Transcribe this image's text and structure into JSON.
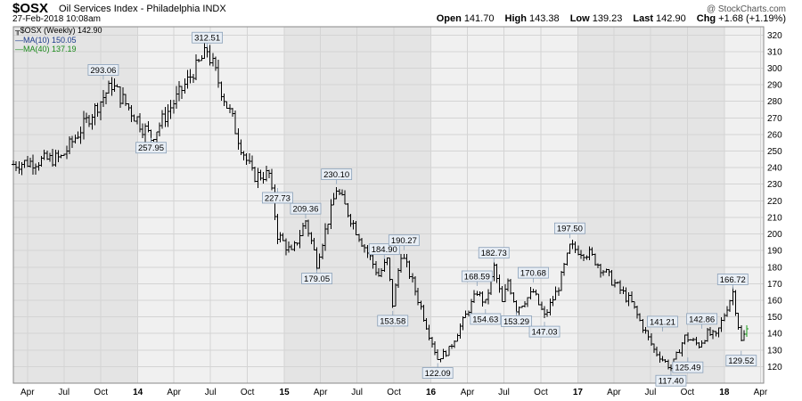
{
  "header": {
    "symbol": "$OSX",
    "description": "Oil Services Index - Philadelphia  INDX",
    "timestamp": "27-Feb-2018 10:08am",
    "watermark": "@ StockCharts.com",
    "open_label": "Open",
    "open": "141.70",
    "high_label": "High",
    "high": "143.38",
    "low_label": "Low",
    "low": "139.23",
    "last_label": "Last",
    "last": "142.90",
    "chg_label": "Chg",
    "chg": "+1.68 (+1.19%)"
  },
  "legend": {
    "price": "$OSX (Weekly) 142.90",
    "ma10": "MA(10) 150.05",
    "ma40": "MA(40) 137.19"
  },
  "colors": {
    "bars": "#000000",
    "last_bar": "#1a9a1a",
    "ma10": "#1a3a8a",
    "ma40": "#1a8a1a",
    "band_shade": "#e4e4e4",
    "band_light": "#f0f0f0"
  },
  "chart_data": {
    "type": "ohlc",
    "grid": true,
    "ylim": [
      110,
      325
    ],
    "y_ticks": [
      120,
      130,
      140,
      150,
      160,
      170,
      180,
      190,
      200,
      210,
      220,
      230,
      240,
      250,
      260,
      270,
      280,
      290,
      300,
      310,
      320
    ],
    "x_ticks": [
      "Apr",
      "Jul",
      "Oct",
      "14",
      "Apr",
      "Jul",
      "Oct",
      "15",
      "Apr",
      "Jul",
      "Oct",
      "16",
      "Apr",
      "Jul",
      "Oct",
      "17",
      "Apr",
      "Jul",
      "Oct",
      "18",
      "Apr"
    ],
    "x_tick_dates": [
      "2013-04-01",
      "2013-07-01",
      "2013-10-01",
      "2014-01-01",
      "2014-04-01",
      "2014-07-01",
      "2014-10-01",
      "2015-01-01",
      "2015-04-01",
      "2015-07-01",
      "2015-10-01",
      "2016-01-01",
      "2016-04-01",
      "2016-07-01",
      "2016-10-01",
      "2017-01-01",
      "2017-04-01",
      "2017-07-01",
      "2017-10-01",
      "2018-01-01",
      "2018-04-01"
    ],
    "x_range": [
      "2013-02-25",
      "2018-04-09"
    ],
    "anchors": [
      {
        "date": "2013-02-25",
        "close": 242
      },
      {
        "date": "2013-06-24",
        "close": 246
      },
      {
        "date": "2013-10-28",
        "close": 290
      },
      {
        "date": "2014-02-03",
        "close": 258
      },
      {
        "date": "2014-06-23",
        "close": 311
      },
      {
        "date": "2014-10-13",
        "close": 235
      },
      {
        "date": "2014-11-24",
        "close": 236
      },
      {
        "date": "2014-12-15",
        "close": 200
      },
      {
        "date": "2015-01-19",
        "close": 188
      },
      {
        "date": "2015-02-23",
        "close": 208
      },
      {
        "date": "2015-03-23",
        "close": 183
      },
      {
        "date": "2015-05-11",
        "close": 227
      },
      {
        "date": "2015-08-24",
        "close": 175
      },
      {
        "date": "2015-09-14",
        "close": 184
      },
      {
        "date": "2015-09-28",
        "close": 158
      },
      {
        "date": "2015-10-19",
        "close": 188
      },
      {
        "date": "2015-11-09",
        "close": 176
      },
      {
        "date": "2016-01-18",
        "close": 125
      },
      {
        "date": "2016-02-15",
        "close": 130
      },
      {
        "date": "2016-04-25",
        "close": 165
      },
      {
        "date": "2016-05-16",
        "close": 158
      },
      {
        "date": "2016-06-06",
        "close": 180
      },
      {
        "date": "2016-06-27",
        "close": 158
      },
      {
        "date": "2016-07-11",
        "close": 172
      },
      {
        "date": "2016-08-01",
        "close": 155
      },
      {
        "date": "2016-09-12",
        "close": 165
      },
      {
        "date": "2016-10-10",
        "close": 150
      },
      {
        "date": "2016-11-14",
        "close": 168
      },
      {
        "date": "2016-12-12",
        "close": 192
      },
      {
        "date": "2017-01-30",
        "close": 188
      },
      {
        "date": "2017-05-15",
        "close": 158
      },
      {
        "date": "2017-07-10",
        "close": 130
      },
      {
        "date": "2017-08-21",
        "close": 119
      },
      {
        "date": "2017-09-25",
        "close": 138
      },
      {
        "date": "2017-10-30",
        "close": 133
      },
      {
        "date": "2017-11-20",
        "close": 140
      },
      {
        "date": "2017-12-11",
        "close": 138
      },
      {
        "date": "2018-01-22",
        "close": 165
      },
      {
        "date": "2018-02-05",
        "close": 145
      },
      {
        "date": "2018-02-12",
        "close": 135
      },
      {
        "date": "2018-02-26",
        "close": 142.9
      }
    ],
    "annotations": [
      {
        "label": "293.06",
        "date": "2013-10-07",
        "value": 293.06,
        "position": "above"
      },
      {
        "label": "257.95",
        "date": "2014-02-03",
        "value": 257.95,
        "position": "below"
      },
      {
        "label": "312.51",
        "date": "2014-06-23",
        "value": 312.51,
        "position": "above"
      },
      {
        "label": "227.73",
        "date": "2014-12-15",
        "value": 227.73,
        "position": "below"
      },
      {
        "label": "209.36",
        "date": "2015-02-23",
        "value": 209.36,
        "position": "above"
      },
      {
        "label": "179.05",
        "date": "2015-03-23",
        "value": 179.05,
        "position": "below"
      },
      {
        "label": "230.10",
        "date": "2015-05-11",
        "value": 230.1,
        "position": "above"
      },
      {
        "label": "184.90",
        "date": "2015-09-07",
        "value": 184.9,
        "position": "above"
      },
      {
        "label": "153.58",
        "date": "2015-09-28",
        "value": 153.58,
        "position": "below"
      },
      {
        "label": "190.27",
        "date": "2015-10-26",
        "value": 190.27,
        "position": "above"
      },
      {
        "label": "122.09",
        "date": "2016-01-18",
        "value": 122.09,
        "position": "below"
      },
      {
        "label": "168.59",
        "date": "2016-04-25",
        "value": 168.59,
        "position": "above"
      },
      {
        "label": "154.63",
        "date": "2016-05-16",
        "value": 154.63,
        "position": "below"
      },
      {
        "label": "182.73",
        "date": "2016-06-06",
        "value": 182.73,
        "position": "above"
      },
      {
        "label": "153.29",
        "date": "2016-08-01",
        "value": 153.29,
        "position": "below"
      },
      {
        "label": "170.68",
        "date": "2016-09-12",
        "value": 170.68,
        "position": "above"
      },
      {
        "label": "147.03",
        "date": "2016-10-10",
        "value": 147.03,
        "position": "below"
      },
      {
        "label": "197.50",
        "date": "2016-12-12",
        "value": 197.5,
        "position": "above"
      },
      {
        "label": "141.21",
        "date": "2017-07-31",
        "value": 141.21,
        "position": "above"
      },
      {
        "label": "117.40",
        "date": "2017-08-21",
        "value": 117.4,
        "position": "below"
      },
      {
        "label": "125.49",
        "date": "2017-10-02",
        "value": 125.49,
        "position": "below"
      },
      {
        "label": "142.86",
        "date": "2017-11-06",
        "value": 142.86,
        "position": "above"
      },
      {
        "label": "166.72",
        "date": "2018-01-22",
        "value": 166.72,
        "position": "above"
      },
      {
        "label": "129.52",
        "date": "2018-02-12",
        "value": 129.52,
        "position": "below"
      }
    ]
  }
}
